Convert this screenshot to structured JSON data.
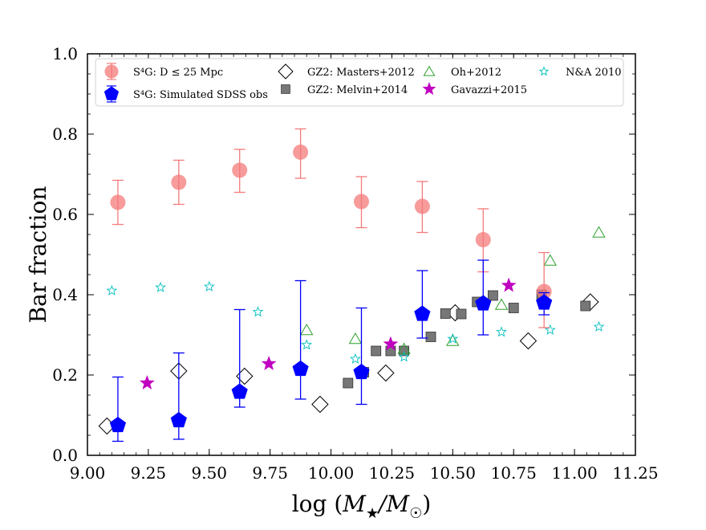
{
  "chart_data": {
    "type": "scatter",
    "xlabel": "log (M★/M☉)",
    "ylabel": "Bar fraction",
    "xlim": [
      9.0,
      11.25
    ],
    "ylim": [
      0.0,
      1.0
    ],
    "xticks": [
      "9.00",
      "9.25",
      "9.50",
      "9.75",
      "10.00",
      "10.25",
      "10.50",
      "10.75",
      "11.00",
      "11.25"
    ],
    "yticks": [
      "0.0",
      "0.2",
      "0.4",
      "0.6",
      "0.8",
      "1.0"
    ],
    "legend_position": "top",
    "series": [
      {
        "name": "S⁴G: D ≤ 25 Mpc",
        "marker": "circle",
        "color": "#f47a7a",
        "x": [
          9.125,
          9.375,
          9.625,
          9.875,
          10.125,
          10.375,
          10.625,
          10.875
        ],
        "y": [
          0.63,
          0.68,
          0.71,
          0.755,
          0.632,
          0.62,
          0.537,
          0.408
        ],
        "yerr_low": [
          0.055,
          0.055,
          0.055,
          0.065,
          0.065,
          0.065,
          0.08,
          0.09
        ],
        "yerr_high": [
          0.055,
          0.055,
          0.052,
          0.058,
          0.062,
          0.062,
          0.077,
          0.097
        ]
      },
      {
        "name": "S⁴G: Simulated SDSS obs",
        "marker": "pentagon",
        "color": "#0000ff",
        "x": [
          9.125,
          9.375,
          9.625,
          9.875,
          10.125,
          10.375,
          10.625,
          10.875
        ],
        "y": [
          0.075,
          0.087,
          0.158,
          0.215,
          0.207,
          0.352,
          0.378,
          0.38
        ],
        "yerr_low": [
          0.04,
          0.047,
          0.038,
          0.075,
          0.08,
          0.06,
          0.078,
          0.03
        ],
        "yerr_high": [
          0.12,
          0.168,
          0.205,
          0.22,
          0.16,
          0.108,
          0.108,
          0.025
        ]
      },
      {
        "name": "GZ2: Masters+2012",
        "marker": "diamond-open",
        "color": "#000000",
        "x": [
          9.08,
          9.375,
          9.645,
          9.955,
          10.225,
          10.51,
          10.81,
          11.065
        ],
        "y": [
          0.073,
          0.21,
          0.197,
          0.127,
          0.205,
          0.355,
          0.285,
          0.382
        ]
      },
      {
        "name": "GZ2: Melvin+2014",
        "marker": "square",
        "color": "#777777",
        "x": [
          10.07,
          10.135,
          10.185,
          10.245,
          10.3,
          10.41,
          10.47,
          10.535,
          10.6,
          10.665,
          10.75,
          10.865,
          11.045
        ],
        "y": [
          0.18,
          0.207,
          0.26,
          0.26,
          0.26,
          0.295,
          0.353,
          0.352,
          0.382,
          0.398,
          0.367,
          0.4,
          0.372
        ]
      },
      {
        "name": "Oh+2012",
        "marker": "triangle-open",
        "color": "#2ca02c",
        "x": [
          9.9,
          10.1,
          10.3,
          10.5,
          10.7,
          10.9,
          11.1
        ],
        "y": [
          0.312,
          0.29,
          0.265,
          0.285,
          0.375,
          0.485,
          0.555
        ]
      },
      {
        "name": "Gavazzi+2015",
        "marker": "star",
        "color": "#c000c0",
        "x": [
          9.245,
          9.745,
          10.245,
          10.73
        ],
        "y": [
          0.18,
          0.228,
          0.277,
          0.423
        ]
      },
      {
        "name": "N&A 2010",
        "marker": "star-open",
        "color": "#00bfbf",
        "x": [
          9.1,
          9.3,
          9.5,
          9.7,
          9.9,
          10.1,
          10.3,
          10.5,
          10.7,
          10.9,
          11.1
        ],
        "y": [
          0.41,
          0.418,
          0.42,
          0.357,
          0.275,
          0.24,
          0.245,
          0.29,
          0.307,
          0.312,
          0.32
        ]
      }
    ]
  }
}
